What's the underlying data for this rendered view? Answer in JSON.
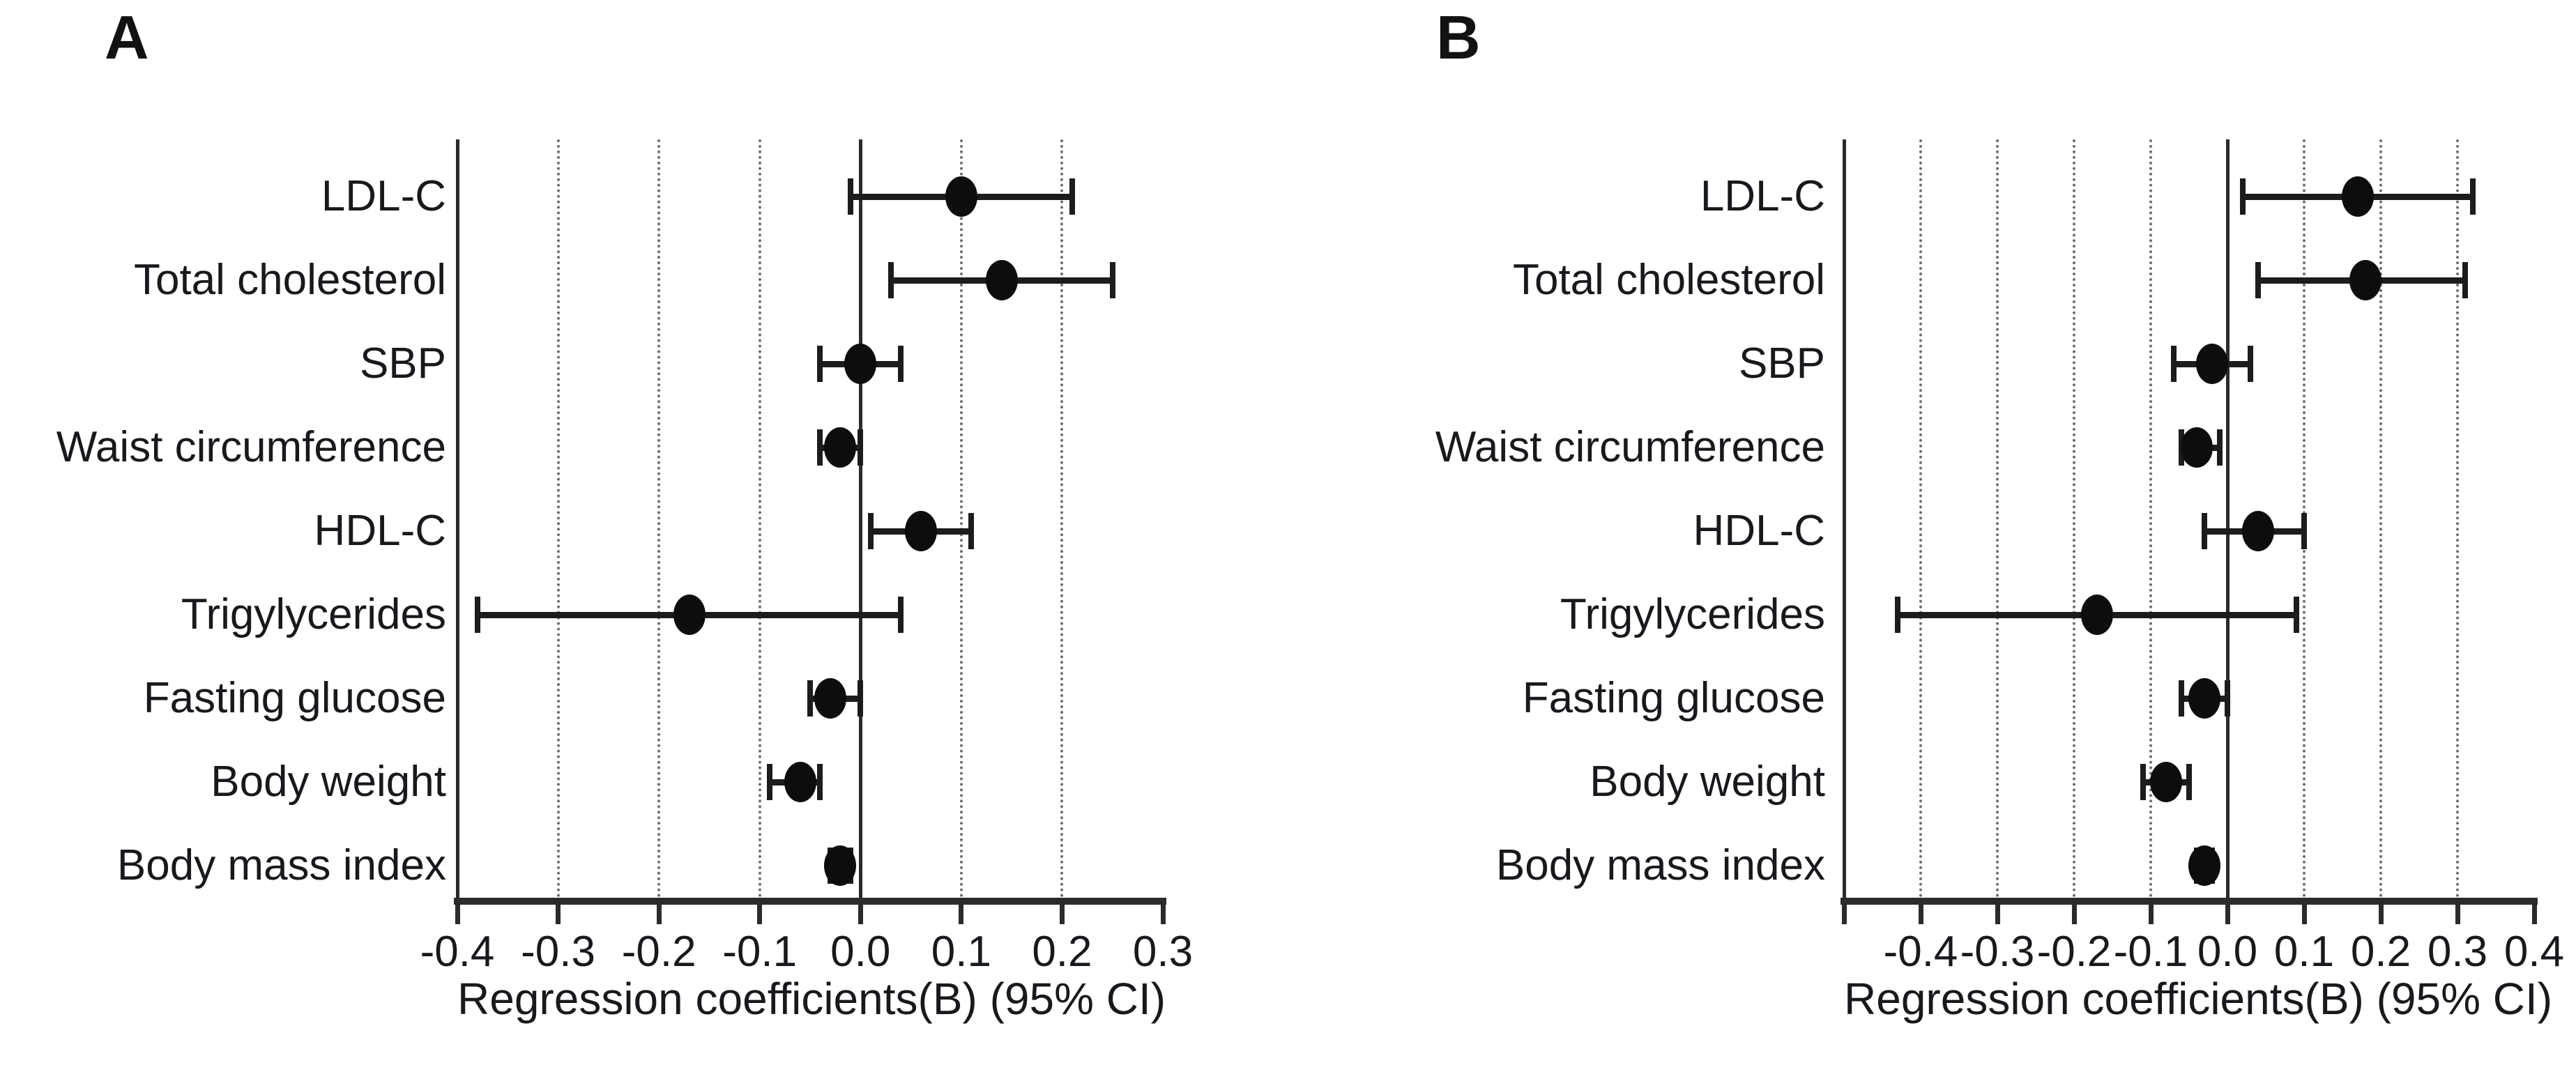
{
  "figure": {
    "background": "#ffffff",
    "text_color": "#17191d",
    "axis_color": "#2b2b2b",
    "grid_color": "#6e6e6e",
    "marker_color": "#0d0d0d"
  },
  "chart_data": [
    {
      "type": "scatter",
      "variant": "forest-plot",
      "panel": "A",
      "xlabel": "Regression coefficients(B) (95% CI)",
      "categories": [
        "LDL-C",
        "Total cholesterol",
        "SBP",
        "Waist circumference",
        "HDL-C",
        "Trigylycerides",
        "Fasting glucose",
        "Body weight",
        "Body mass index"
      ],
      "series": [
        {
          "name": "Regression coefficients(B) (95% CI)",
          "points": [
            {
              "b": 0.1,
              "lo": -0.01,
              "hi": 0.21
            },
            {
              "b": 0.14,
              "lo": 0.03,
              "hi": 0.25
            },
            {
              "b": 0.0,
              "lo": -0.04,
              "hi": 0.04
            },
            {
              "b": -0.02,
              "lo": -0.04,
              "hi": 0.0
            },
            {
              "b": 0.06,
              "lo": 0.01,
              "hi": 0.11
            },
            {
              "b": -0.17,
              "lo": -0.38,
              "hi": 0.04
            },
            {
              "b": -0.03,
              "lo": -0.05,
              "hi": 0.0
            },
            {
              "b": -0.06,
              "lo": -0.09,
              "hi": -0.04
            },
            {
              "b": -0.02,
              "lo": -0.03,
              "hi": -0.01
            }
          ]
        }
      ],
      "xlim": [
        -0.4,
        0.3
      ],
      "draw_xlim": [
        -0.4,
        0.3
      ],
      "xticks": [
        "-0.4",
        "-0.3",
        "-0.2",
        "-0.1",
        "0.0",
        "0.1",
        "0.2",
        "0.3"
      ],
      "grid_dotted": [
        -0.3,
        -0.2,
        -0.1,
        0.1,
        0.2
      ],
      "zero_line": 0.0,
      "grid": true,
      "legend": "none"
    },
    {
      "type": "scatter",
      "variant": "forest-plot",
      "panel": "B",
      "xlabel": "Regression coefficients(B) (95% CI)",
      "categories": [
        "LDL-C",
        "Total cholesterol",
        "SBP",
        "Waist circumference",
        "HDL-C",
        "Trigylycerides",
        "Fasting glucose",
        "Body weight",
        "Body mass index"
      ],
      "series": [
        {
          "name": "Regression coefficients(B) (95% CI)",
          "points": [
            {
              "b": 0.17,
              "lo": 0.02,
              "hi": 0.32
            },
            {
              "b": 0.18,
              "lo": 0.04,
              "hi": 0.31
            },
            {
              "b": -0.02,
              "lo": -0.07,
              "hi": 0.03
            },
            {
              "b": -0.04,
              "lo": -0.06,
              "hi": -0.01
            },
            {
              "b": 0.04,
              "lo": -0.03,
              "hi": 0.1
            },
            {
              "b": -0.17,
              "lo": -0.43,
              "hi": 0.09
            },
            {
              "b": -0.03,
              "lo": -0.06,
              "hi": 0.0
            },
            {
              "b": -0.08,
              "lo": -0.11,
              "hi": -0.05
            },
            {
              "b": -0.03,
              "lo": -0.04,
              "hi": -0.02
            }
          ]
        }
      ],
      "xlim": [
        -0.4,
        0.4
      ],
      "draw_xlim": [
        -0.5,
        0.4
      ],
      "xticks": [
        "-0.4",
        "-0.3",
        "-0.2",
        "-0.1",
        "0.0",
        "0.1",
        "0.2",
        "0.3",
        "0.4"
      ],
      "grid_dotted": [
        -0.4,
        -0.3,
        -0.2,
        -0.1,
        0.1,
        0.2,
        0.3
      ],
      "zero_line": 0.0,
      "grid": true,
      "legend": "none"
    }
  ]
}
